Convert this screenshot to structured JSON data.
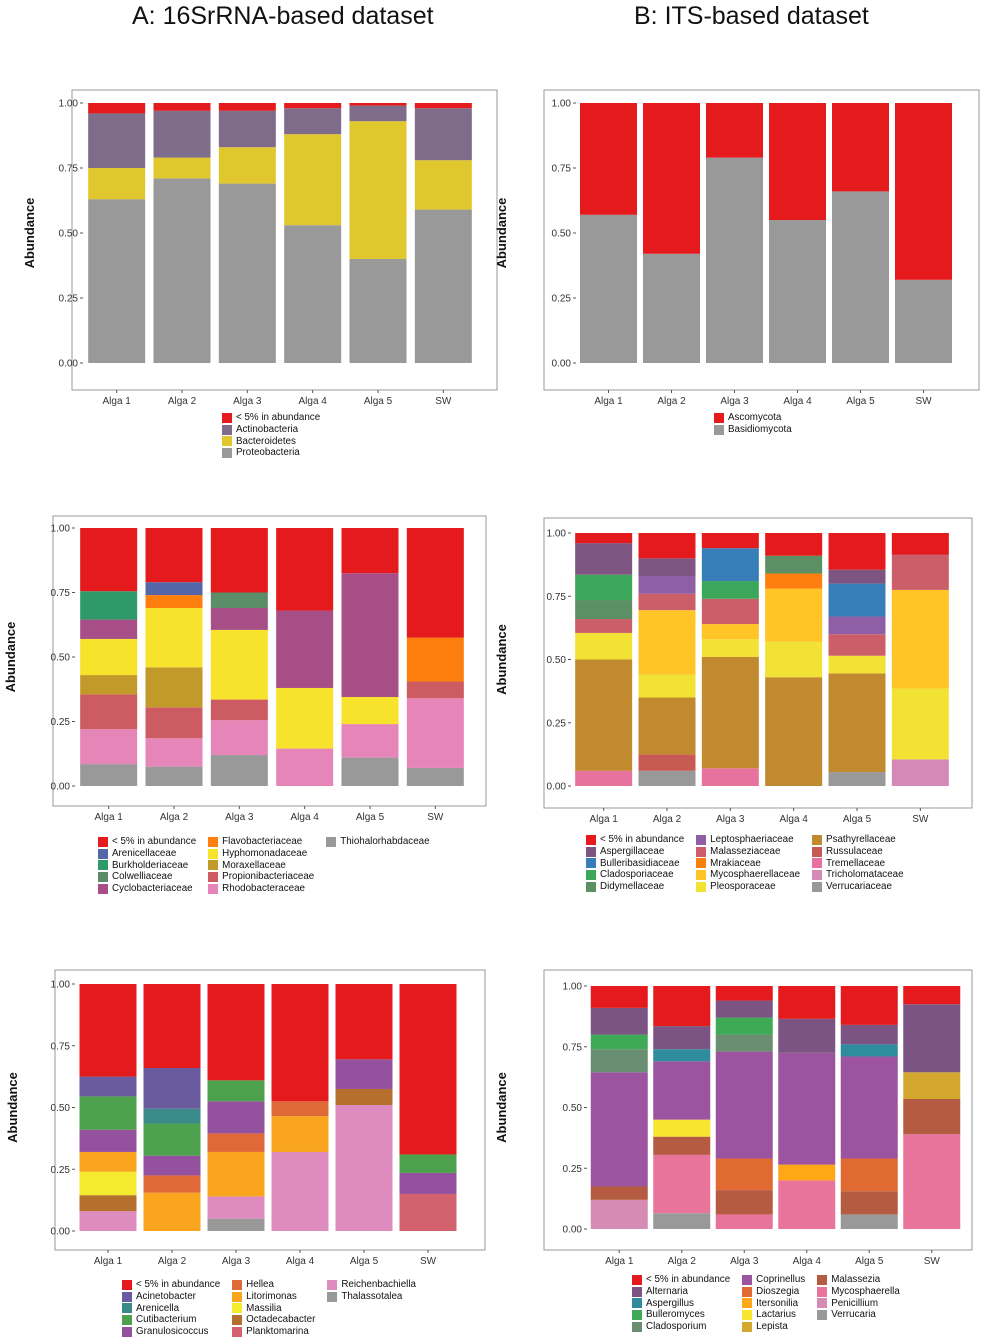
{
  "titles": {
    "left": "A: 16SrRNA-based dataset",
    "right": "B: ITS-based dataset"
  },
  "chart_data": [
    {
      "id": "a1",
      "type": "bar",
      "stacked": true,
      "ylabel": "Abundance",
      "ylim": [
        0,
        1
      ],
      "yticks": [
        "0.00",
        "0.25",
        "0.50",
        "0.75",
        "1.00"
      ],
      "categories": [
        "Alga 1",
        "Alga 2",
        "Alga 3",
        "Alga 4",
        "Alga 5",
        "SW"
      ],
      "series": [
        {
          "name": "Proteobacteria",
          "color": "#999999",
          "values": [
            0.63,
            0.71,
            0.69,
            0.53,
            0.4,
            0.59
          ]
        },
        {
          "name": "Bacteroidetes",
          "color": "#E0C72E",
          "values": [
            0.12,
            0.08,
            0.14,
            0.35,
            0.53,
            0.19
          ]
        },
        {
          "name": "Actinobacteria",
          "color": "#7E6C8A",
          "values": [
            0.21,
            0.18,
            0.14,
            0.1,
            0.06,
            0.2
          ]
        },
        {
          "name": "< 5% in abundance",
          "color": "#E41A1C",
          "values": [
            0.04,
            0.03,
            0.03,
            0.02,
            0.01,
            0.02
          ]
        }
      ],
      "legend_cols": [
        [
          "< 5% in abundance",
          "Actinobacteria",
          "Bacteroidetes",
          "Proteobacteria"
        ]
      ]
    },
    {
      "id": "b1",
      "type": "bar",
      "stacked": true,
      "ylabel": "Abundance",
      "ylim": [
        0,
        1
      ],
      "yticks": [
        "0.00",
        "0.25",
        "0.50",
        "0.75",
        "1.00"
      ],
      "categories": [
        "Alga 1",
        "Alga 2",
        "Alga 3",
        "Alga 4",
        "Alga 5",
        "SW"
      ],
      "series": [
        {
          "name": "Basidiomycota",
          "color": "#999999",
          "values": [
            0.57,
            0.42,
            0.79,
            0.55,
            0.66,
            0.32
          ]
        },
        {
          "name": "Ascomycota",
          "color": "#E41A1C",
          "values": [
            0.43,
            0.58,
            0.21,
            0.45,
            0.34,
            0.68
          ]
        }
      ],
      "legend_cols": [
        [
          "Ascomycota",
          "Basidiomycota"
        ]
      ]
    },
    {
      "id": "a2",
      "type": "bar",
      "stacked": true,
      "ylabel": "Abundance",
      "ylim": [
        0,
        1
      ],
      "yticks": [
        "0.00",
        "0.25",
        "0.50",
        "0.75",
        "1.00"
      ],
      "categories": [
        "Alga 1",
        "Alga 2",
        "Alga 3",
        "Alga 4",
        "Alga 5",
        "SW"
      ],
      "series": [
        {
          "name": "Thiohalorhabdaceae",
          "color": "#999999",
          "values": [
            0.085,
            0.075,
            0.12,
            0,
            0.11,
            0.07
          ]
        },
        {
          "name": "Rhodobacteraceae",
          "color": "#E585B8",
          "values": [
            0.135,
            0.11,
            0.135,
            0.145,
            0.13,
            0.27
          ]
        },
        {
          "name": "Propionibacteriaceae",
          "color": "#CD5C62",
          "values": [
            0.135,
            0.12,
            0.08,
            0,
            0,
            0.065
          ]
        },
        {
          "name": "Moraxellaceae",
          "color": "#C29A2A",
          "values": [
            0.075,
            0.155,
            0,
            0,
            0,
            0
          ]
        },
        {
          "name": "Hyphomonadaceae",
          "color": "#F7E22C",
          "values": [
            0.14,
            0.23,
            0.27,
            0.235,
            0.105,
            0
          ]
        },
        {
          "name": "Cyclobacteriaceae",
          "color": "#A84E86",
          "values": [
            0.075,
            0,
            0.085,
            0.3,
            0.48,
            0
          ]
        },
        {
          "name": "Colwelliaceae",
          "color": "#5B8E68",
          "values": [
            0,
            0,
            0.06,
            0,
            0,
            0
          ]
        },
        {
          "name": "Flavobacteriaceae",
          "color": "#FF7F0E",
          "values": [
            0,
            0.05,
            0,
            0,
            0,
            0.17
          ]
        },
        {
          "name": "Burkholderiaceae",
          "color": "#2E9A6A",
          "values": [
            0.11,
            0,
            0,
            0,
            0,
            0
          ]
        },
        {
          "name": "Arenicellaceae",
          "color": "#5566A8",
          "values": [
            0,
            0.05,
            0,
            0,
            0,
            0
          ]
        },
        {
          "name": "< 5% in abundance",
          "color": "#E41A1C",
          "values": [
            0.245,
            0.21,
            0.25,
            0.32,
            0.175,
            0.425
          ]
        }
      ],
      "legend_cols": [
        [
          "< 5% in abundance",
          "Arenicellaceae",
          "Burkholderiaceae",
          "Colwelliaceae",
          "Cyclobacteriaceae"
        ],
        [
          "Flavobacteriaceae",
          "Hyphomonadaceae",
          "Moraxellaceae",
          "Propionibacteriaceae",
          "Rhodobacteraceae"
        ],
        [
          "Thiohalorhabdaceae"
        ]
      ]
    },
    {
      "id": "b2",
      "type": "bar",
      "stacked": true,
      "ylabel": "Abundance",
      "ylim": [
        0,
        1
      ],
      "yticks": [
        "0.00",
        "0.25",
        "0.50",
        "0.75",
        "1.00"
      ],
      "categories": [
        "Alga 1",
        "Alga 2",
        "Alga 3",
        "Alga 4",
        "Alga 5",
        "SW"
      ],
      "series": [
        {
          "name": "Verrucariaceae",
          "color": "#999999",
          "values": [
            0,
            0.06,
            0,
            0,
            0.055,
            0
          ]
        },
        {
          "name": "Tricholomataceae",
          "color": "#D489B6",
          "values": [
            0,
            0,
            0,
            0,
            0,
            0.105
          ]
        },
        {
          "name": "Tremellaceae",
          "color": "#E8729E",
          "values": [
            0.06,
            0,
            0.07,
            0,
            0,
            0
          ]
        },
        {
          "name": "Russulaceae",
          "color": "#C85A54",
          "values": [
            0,
            0.065,
            0,
            0,
            0,
            0
          ]
        },
        {
          "name": "Psathyrellaceae",
          "color": "#C18A2E",
          "values": [
            0.44,
            0.225,
            0.44,
            0.43,
            0.39,
            0
          ]
        },
        {
          "name": "Pleosporaceae",
          "color": "#F2E234",
          "values": [
            0.105,
            0.09,
            0.07,
            0.14,
            0.07,
            0.28
          ]
        },
        {
          "name": "Mycosphaerellaceae",
          "color": "#FFC425",
          "values": [
            0,
            0.255,
            0.06,
            0.21,
            0,
            0.39
          ]
        },
        {
          "name": "Mrakiaceae",
          "color": "#FF7F0E",
          "values": [
            0,
            0,
            0,
            0.06,
            0,
            0
          ]
        },
        {
          "name": "Malasseziaceae",
          "color": "#CC5E6A",
          "values": [
            0.055,
            0.065,
            0.1,
            0,
            0.085,
            0.14
          ]
        },
        {
          "name": "Leptosphaeriaceae",
          "color": "#8F5FA6",
          "values": [
            0,
            0.07,
            0,
            0,
            0.07,
            0
          ]
        },
        {
          "name": "Didymellaceae",
          "color": "#5C8F63",
          "values": [
            0.075,
            0,
            0,
            0.07,
            0,
            0
          ]
        },
        {
          "name": "Cladosporiaceae",
          "color": "#3CA65A",
          "values": [
            0.1,
            0,
            0.07,
            0,
            0,
            0
          ]
        },
        {
          "name": "Bulleribasidiaceae",
          "color": "#377EB8",
          "values": [
            0,
            0,
            0.13,
            0,
            0.13,
            0
          ]
        },
        {
          "name": "Aspergillaceae",
          "color": "#7E5581",
          "values": [
            0.125,
            0.07,
            0,
            0,
            0.055,
            0
          ]
        },
        {
          "name": "< 5% in abundance",
          "color": "#E41A1C",
          "values": [
            0.04,
            0.1,
            0.06,
            0.09,
            0.145,
            0.085
          ]
        }
      ],
      "legend_cols": [
        [
          "< 5% in abundance",
          "Aspergillaceae",
          "Bulleribasidiaceae",
          "Cladosporiaceae",
          "Didymellaceae"
        ],
        [
          "Leptosphaeriaceae",
          "Malasseziaceae",
          "Mrakiaceae",
          "Mycosphaerellaceae",
          "Pleosporaceae"
        ],
        [
          "Psathyrellaceae",
          "Russulaceae",
          "Tremellaceae",
          "Tricholomataceae",
          "Verrucariaceae"
        ]
      ]
    },
    {
      "id": "a3",
      "type": "bar",
      "stacked": true,
      "ylabel": "Abundance",
      "ylim": [
        0,
        1
      ],
      "yticks": [
        "0.00",
        "0.25",
        "0.50",
        "0.75",
        "1.00"
      ],
      "categories": [
        "Alga 1",
        "Alga 2",
        "Alga 3",
        "Alga 4",
        "Alga 5",
        "SW"
      ],
      "series": [
        {
          "name": "Thalassotalea",
          "color": "#999999",
          "values": [
            0,
            0,
            0.05,
            0,
            0,
            0
          ]
        },
        {
          "name": "Reichenbachiella",
          "color": "#DE8CC0",
          "values": [
            0.08,
            0,
            0.09,
            0.32,
            0.51,
            0
          ]
        },
        {
          "name": "Planktomarina",
          "color": "#D4626E",
          "values": [
            0,
            0,
            0,
            0,
            0,
            0.15
          ]
        },
        {
          "name": "Octadecabacter",
          "color": "#B5702E",
          "values": [
            0.065,
            0,
            0,
            0,
            0.065,
            0
          ]
        },
        {
          "name": "Massilia",
          "color": "#F4EA2E",
          "values": [
            0.095,
            0,
            0,
            0,
            0,
            0
          ]
        },
        {
          "name": "Litorimonas",
          "color": "#F9A51D",
          "values": [
            0.08,
            0.155,
            0.18,
            0.145,
            0,
            0
          ]
        },
        {
          "name": "Hellea",
          "color": "#E06A37",
          "values": [
            0,
            0.07,
            0.075,
            0.06,
            0,
            0
          ]
        },
        {
          "name": "Granulosicoccus",
          "color": "#93519E",
          "values": [
            0.09,
            0.08,
            0.13,
            0,
            0.12,
            0.085
          ]
        },
        {
          "name": "Cutibacterium",
          "color": "#4EA14C",
          "values": [
            0.135,
            0.13,
            0.085,
            0,
            0,
            0.075
          ]
        },
        {
          "name": "Arenicella",
          "color": "#3A8A8A",
          "values": [
            0,
            0.06,
            0,
            0,
            0,
            0
          ]
        },
        {
          "name": "Acinetobacter",
          "color": "#6A5A9E",
          "values": [
            0.08,
            0.165,
            0,
            0,
            0,
            0
          ]
        },
        {
          "name": "< 5% in abundance",
          "color": "#E41A1C",
          "values": [
            0.375,
            0.34,
            0.39,
            0.475,
            0.305,
            0.69
          ]
        }
      ],
      "legend_cols": [
        [
          "< 5% in abundance",
          "Acinetobacter",
          "Arenicella",
          "Cutibacterium",
          "Granulosicoccus"
        ],
        [
          "Hellea",
          "Litorimonas",
          "Massilia",
          "Octadecabacter",
          "Planktomarina"
        ],
        [
          "Reichenbachiella",
          "Thalassotalea"
        ]
      ]
    },
    {
      "id": "b3",
      "type": "bar",
      "stacked": true,
      "ylabel": "Abundance",
      "ylim": [
        0,
        1
      ],
      "yticks": [
        "0.00",
        "0.25",
        "0.50",
        "0.75",
        "1.00"
      ],
      "categories": [
        "Alga 1",
        "Alga 2",
        "Alga 3",
        "Alga 4",
        "Alga 5",
        "SW"
      ],
      "series": [
        {
          "name": "Verrucaria",
          "color": "#999999",
          "values": [
            0,
            0.065,
            0,
            0,
            0.06,
            0
          ]
        },
        {
          "name": "Penicillium",
          "color": "#D68BB5",
          "values": [
            0.12,
            0,
            0,
            0,
            0,
            0
          ]
        },
        {
          "name": "Mycosphaerella",
          "color": "#E8749B",
          "values": [
            0,
            0.24,
            0.06,
            0.2,
            0,
            0.39
          ]
        },
        {
          "name": "Malassezia",
          "color": "#B55B42",
          "values": [
            0.055,
            0.075,
            0.1,
            0,
            0.095,
            0.145
          ]
        },
        {
          "name": "Lepista",
          "color": "#D4A82E",
          "values": [
            0,
            0,
            0,
            0,
            0,
            0.11
          ]
        },
        {
          "name": "Lactarius",
          "color": "#F7E530",
          "values": [
            0,
            0.07,
            0,
            0,
            0,
            0
          ]
        },
        {
          "name": "Itersonilia",
          "color": "#FFA716",
          "values": [
            0,
            0,
            0,
            0.065,
            0,
            0
          ]
        },
        {
          "name": "Dioszegia",
          "color": "#E06A32",
          "values": [
            0,
            0,
            0.13,
            0,
            0.135,
            0
          ]
        },
        {
          "name": "Coprinellus",
          "color": "#9C54A0",
          "values": [
            0.47,
            0.24,
            0.44,
            0.46,
            0.42,
            0
          ]
        },
        {
          "name": "Cladosporium",
          "color": "#6A8E72",
          "values": [
            0.095,
            0,
            0.07,
            0,
            0,
            0
          ]
        },
        {
          "name": "Bulleromyces",
          "color": "#3FAA55",
          "values": [
            0.06,
            0,
            0.07,
            0,
            0,
            0
          ]
        },
        {
          "name": "Aspergillus",
          "color": "#2E8C9E",
          "values": [
            0,
            0.05,
            0,
            0,
            0.05,
            0
          ]
        },
        {
          "name": "Alternaria",
          "color": "#7B5484",
          "values": [
            0.11,
            0.095,
            0.07,
            0.14,
            0.08,
            0.28
          ]
        },
        {
          "name": "< 5% in abundance",
          "color": "#E41A1C",
          "values": [
            0.09,
            0.165,
            0.06,
            0.135,
            0.16,
            0.075
          ]
        }
      ],
      "legend_cols": [
        [
          "< 5% in abundance",
          "Alternaria",
          "Aspergillus",
          "Bulleromyces",
          "Cladosporium"
        ],
        [
          "Coprinellus",
          "Dioszegia",
          "Itersonilia",
          "Lactarius",
          "Lepista"
        ],
        [
          "Malassezia",
          "Mycosphaerella",
          "Penicillium",
          "Verrucaria"
        ]
      ]
    }
  ]
}
